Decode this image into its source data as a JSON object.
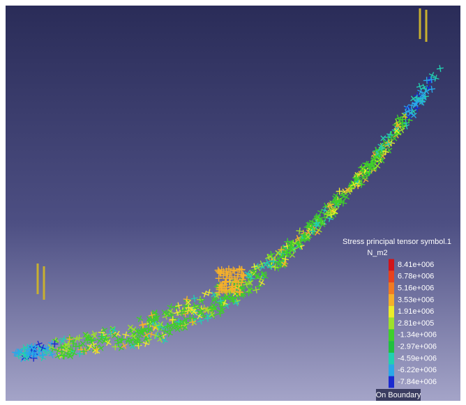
{
  "legend": {
    "title": "Stress principal tensor symbol.1",
    "unit": "N_m2",
    "levels": [
      {
        "label": "8.41e+006",
        "color": "#d0141a"
      },
      {
        "label": "6.78e+006",
        "color": "#e8421c"
      },
      {
        "label": "5.16e+006",
        "color": "#f07a22"
      },
      {
        "label": "3.53e+006",
        "color": "#f4b02a"
      },
      {
        "label": "1.91e+006",
        "color": "#ecec2a"
      },
      {
        "label": "2.81e+005",
        "color": "#9ee02a"
      },
      {
        "label": "-1.34e+006",
        "color": "#3fcf2a"
      },
      {
        "label": "-2.97e+006",
        "color": "#20c040"
      },
      {
        "label": "-4.59e+006",
        "color": "#22d0b0"
      },
      {
        "label": "-6.22e+006",
        "color": "#2aa8e8"
      },
      {
        "label": "-7.84e+006",
        "color": "#1a2ad0"
      }
    ],
    "footer": "On Boundary"
  }
}
